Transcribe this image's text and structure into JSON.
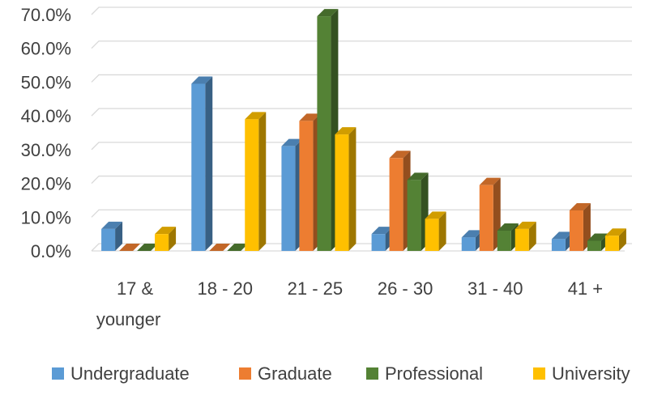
{
  "chart_data": {
    "type": "bar",
    "categories": [
      [
        "17 &",
        "younger"
      ],
      [
        "18 - 20"
      ],
      [
        "21 - 25"
      ],
      [
        "26 - 30"
      ],
      [
        "31 - 40"
      ],
      [
        "41 +"
      ]
    ],
    "series": [
      {
        "name": "Undergraduate",
        "values": [
          6.5,
          49.5,
          31.0,
          5.0,
          4.0,
          3.5
        ],
        "color": "#5B9BD5"
      },
      {
        "name": "Graduate",
        "values": [
          0.0,
          0.0,
          38.5,
          27.5,
          19.5,
          12.0
        ],
        "color": "#ED7D31"
      },
      {
        "name": "Professional",
        "values": [
          0.0,
          0.0,
          69.5,
          21.0,
          6.0,
          3.0
        ],
        "color": "#548235"
      },
      {
        "name": "University",
        "values": [
          5.0,
          39.0,
          34.5,
          9.5,
          6.5,
          4.5
        ],
        "color": "#FFC000"
      }
    ],
    "ylim": [
      0,
      70
    ],
    "yticks": [
      "0.0%",
      "10.0%",
      "20.0%",
      "30.0%",
      "40.0%",
      "50.0%",
      "60.0%",
      "70.0%"
    ],
    "grid": true,
    "legend_position": "bottom",
    "title": "",
    "xlabel": "",
    "ylabel": ""
  }
}
